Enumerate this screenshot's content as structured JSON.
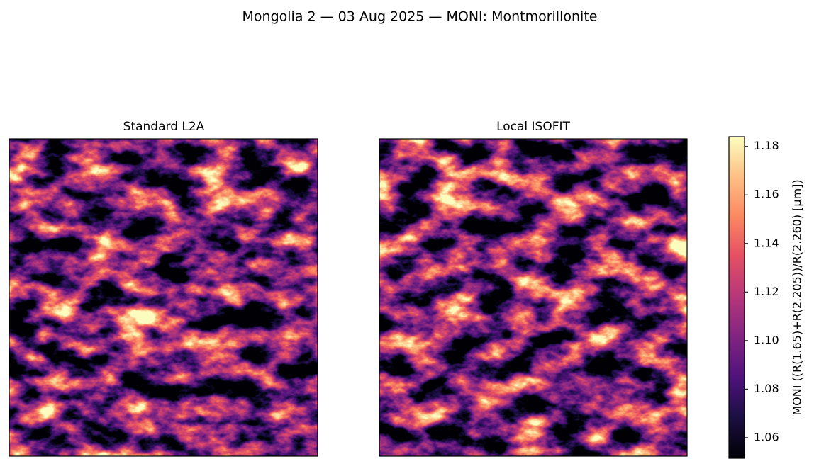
{
  "chart_data": {
    "type": "heatmap",
    "title": "Mongolia 2 — 03 Aug 2025 — MONI: Montmorillonite",
    "panels": [
      {
        "title": "Standard L2A"
      },
      {
        "title": "Local ISOFIT"
      }
    ],
    "colorbar": {
      "label": "MONI  ((R(1.65)+R(2.205))/R(2.260)  [µm])",
      "colormap": "magma",
      "ylim": [
        1.0515,
        1.184
      ],
      "yticks": [
        1.06,
        1.08,
        {
          "value": 1.1,
          "label": "1.10"
        },
        1.12,
        1.14,
        1.16,
        1.18
      ]
    }
  }
}
